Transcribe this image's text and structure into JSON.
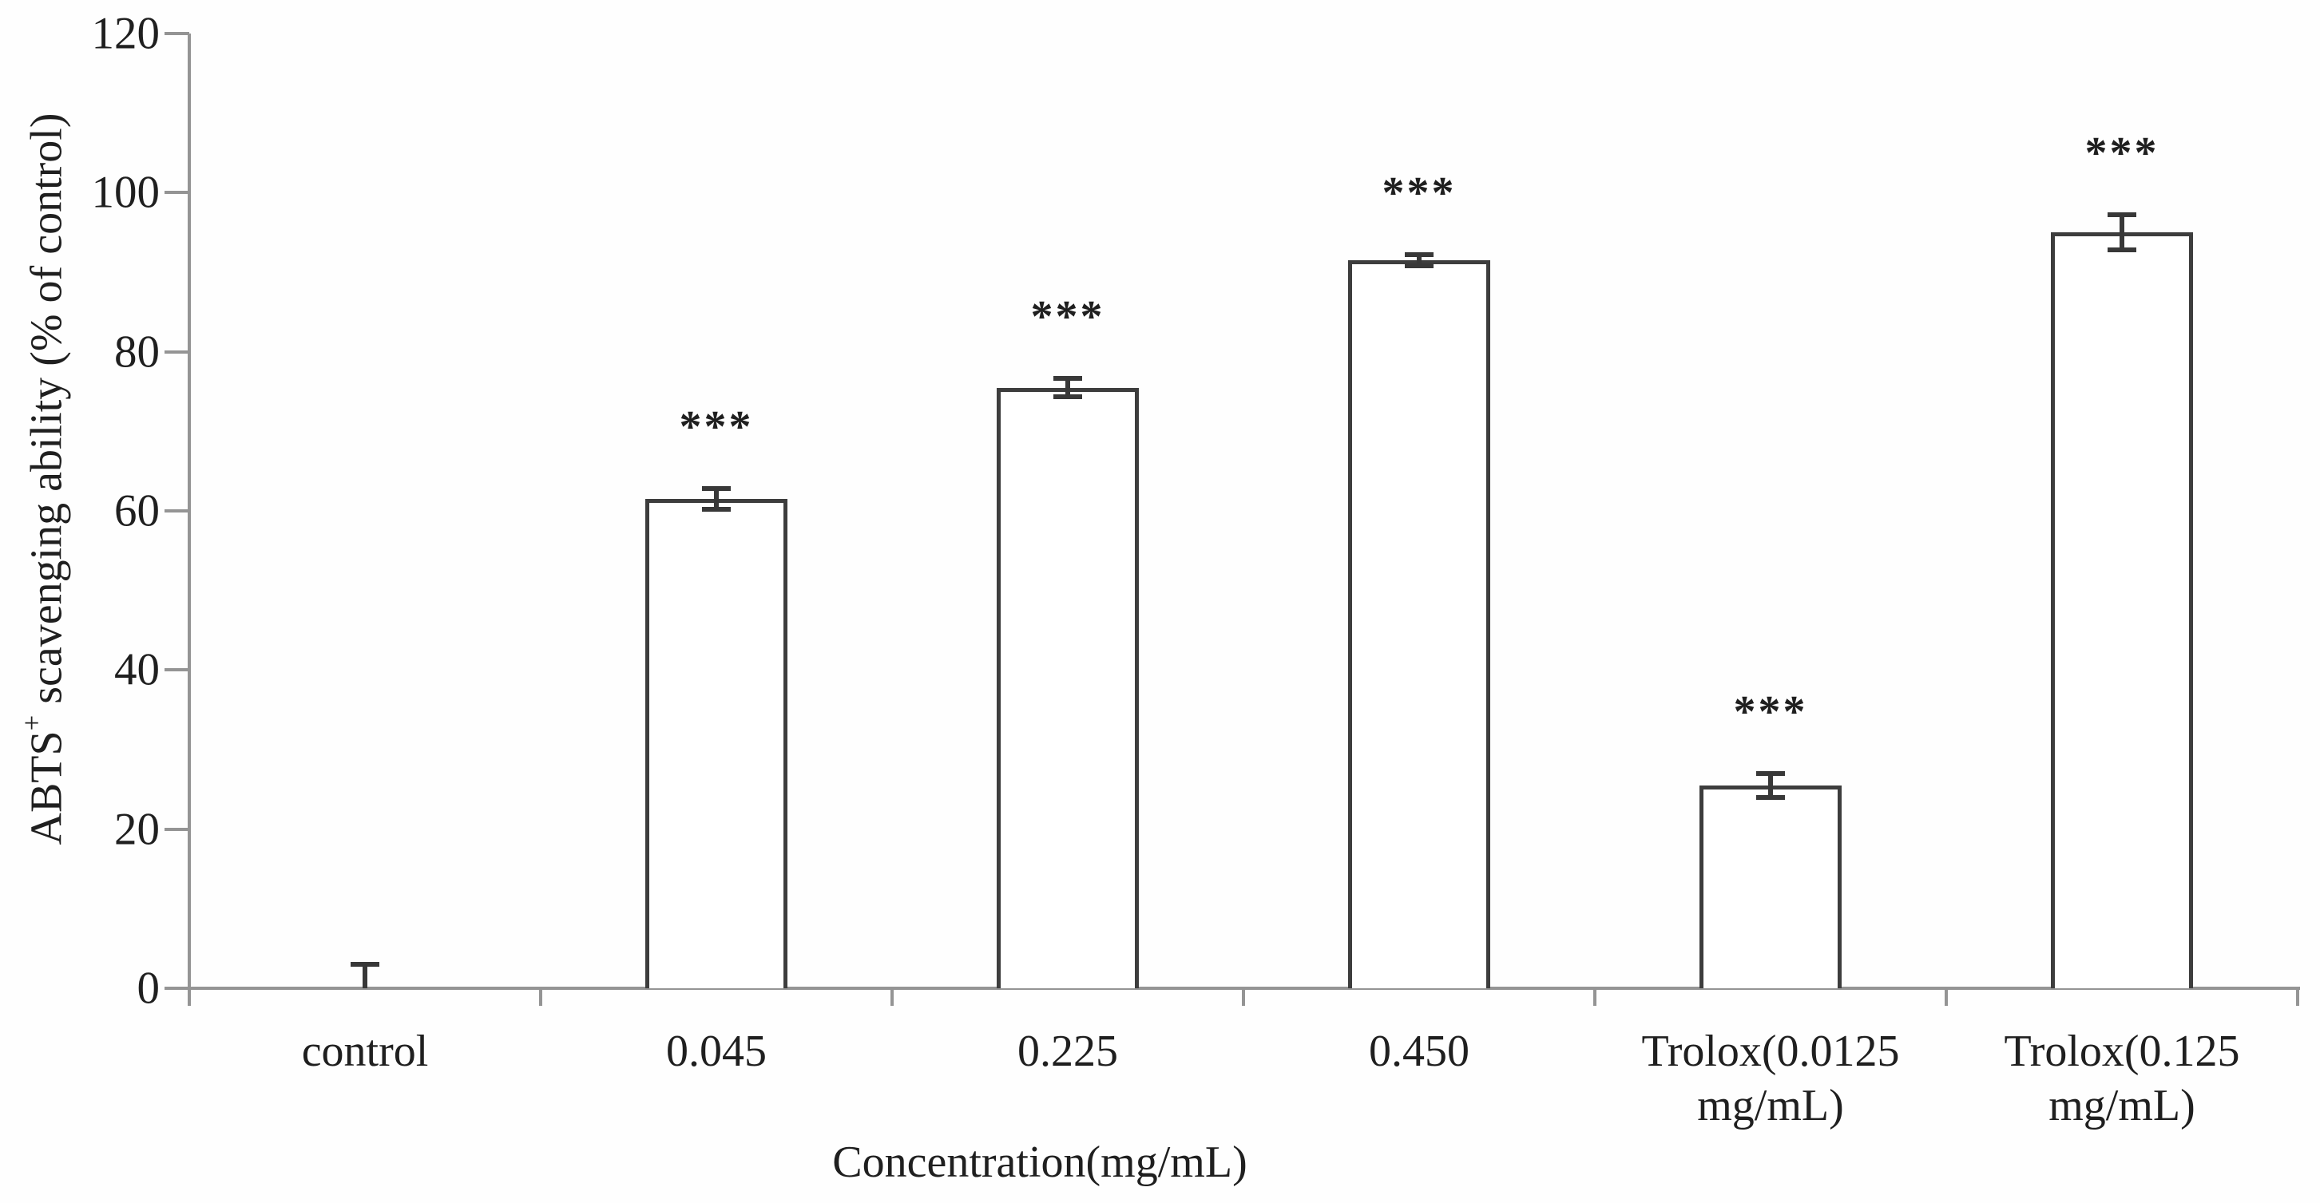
{
  "chart_data": {
    "type": "bar",
    "title": "",
    "xlabel": "Concentration(mg/mL)",
    "ylabel": "ABTS+ scavenging ability (% of control)",
    "ylabel_parts": {
      "base": "ABTS",
      "sup": "+",
      "rest": " scavenging ability (% of control)"
    },
    "categories": [
      "control",
      "0.045",
      "0.225",
      "0.450",
      "Trolox(0.0125 mg/mL)",
      "Trolox(0.125 mg/mL)"
    ],
    "values": [
      0.2,
      61.5,
      75.5,
      91.5,
      25.5,
      95.0
    ],
    "errors": [
      2.8,
      1.3,
      1.2,
      0.7,
      1.5,
      2.2
    ],
    "significance": [
      "",
      "***",
      "***",
      "***",
      "***",
      "***"
    ],
    "ylim": [
      0,
      120
    ],
    "yticks": [
      0,
      20,
      40,
      60,
      80,
      100,
      120
    ],
    "grid": false,
    "legend": null,
    "colors": {
      "bar_fill": "#ffffff",
      "bar_border": "#3d3d3d",
      "error": "#383838",
      "axis": "#949494",
      "text": "#1f1f1f",
      "background": "#fefefe"
    }
  }
}
